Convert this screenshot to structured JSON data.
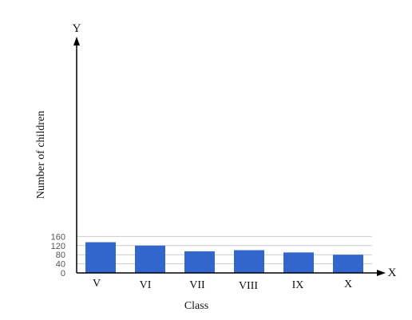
{
  "chart_data": {
    "type": "bar",
    "title": "",
    "xlabel": "Class",
    "ylabel": "Number of children",
    "x_axis_letter": "X",
    "y_axis_letter": "Y",
    "categories": [
      "V",
      "VI",
      "VII",
      "VIII",
      "IX",
      "X"
    ],
    "values": [
      135,
      120,
      95,
      100,
      90,
      80
    ],
    "yticks": [
      0,
      40,
      80,
      120,
      160
    ],
    "ylim": [
      0,
      160
    ],
    "grid": true,
    "bar_color": "#3366cc",
    "grid_color": "#cccccc",
    "axis_color": "#000000"
  }
}
